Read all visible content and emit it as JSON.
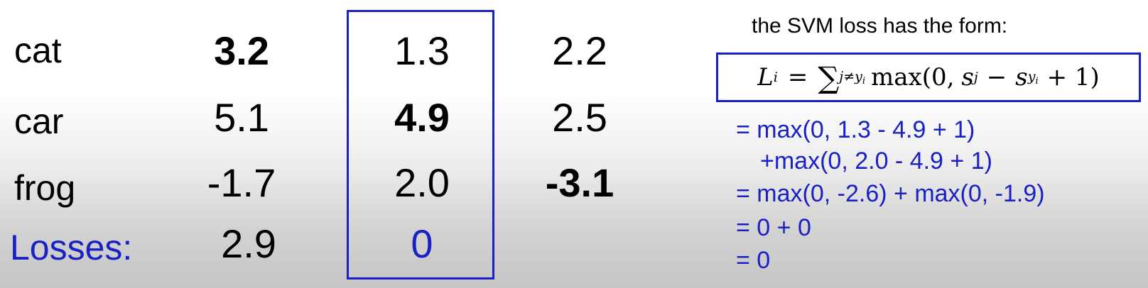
{
  "rows": {
    "cat": {
      "label": "cat",
      "col1": "3.2",
      "col2": "1.3",
      "col3": "2.2"
    },
    "car": {
      "label": "car",
      "col1": "5.1",
      "col2": "4.9",
      "col3": "2.5"
    },
    "frog": {
      "label": "frog",
      "col1": "-1.7",
      "col2": "2.0",
      "col3": "-3.1"
    }
  },
  "losses": {
    "label": "Losses:",
    "col1": "2.9",
    "col2": "0"
  },
  "svm": {
    "title": "the SVM loss has the form:",
    "formula": {
      "lhs_symbol": "L",
      "lhs_sub": "i",
      "equals": "=",
      "sum_symbol": "∑",
      "sum_sub_j": "j≠y",
      "sum_sub_i": "i",
      "max_open": "max(0,",
      "s": "s",
      "s_sub_j": "j",
      "minus": "−",
      "s_sub_y": "y",
      "s_sub_y_i": "i",
      "plus_one": "+ 1)"
    },
    "steps": [
      "= max(0, 1.3 - 4.9 + 1)",
      "+max(0, 2.0 - 4.9 + 1)",
      "= max(0, -2.6) + max(0, -1.9)",
      "= 0 + 0",
      "= 0"
    ]
  },
  "colors": {
    "accent": "#1a21c4",
    "text": "#000000"
  }
}
